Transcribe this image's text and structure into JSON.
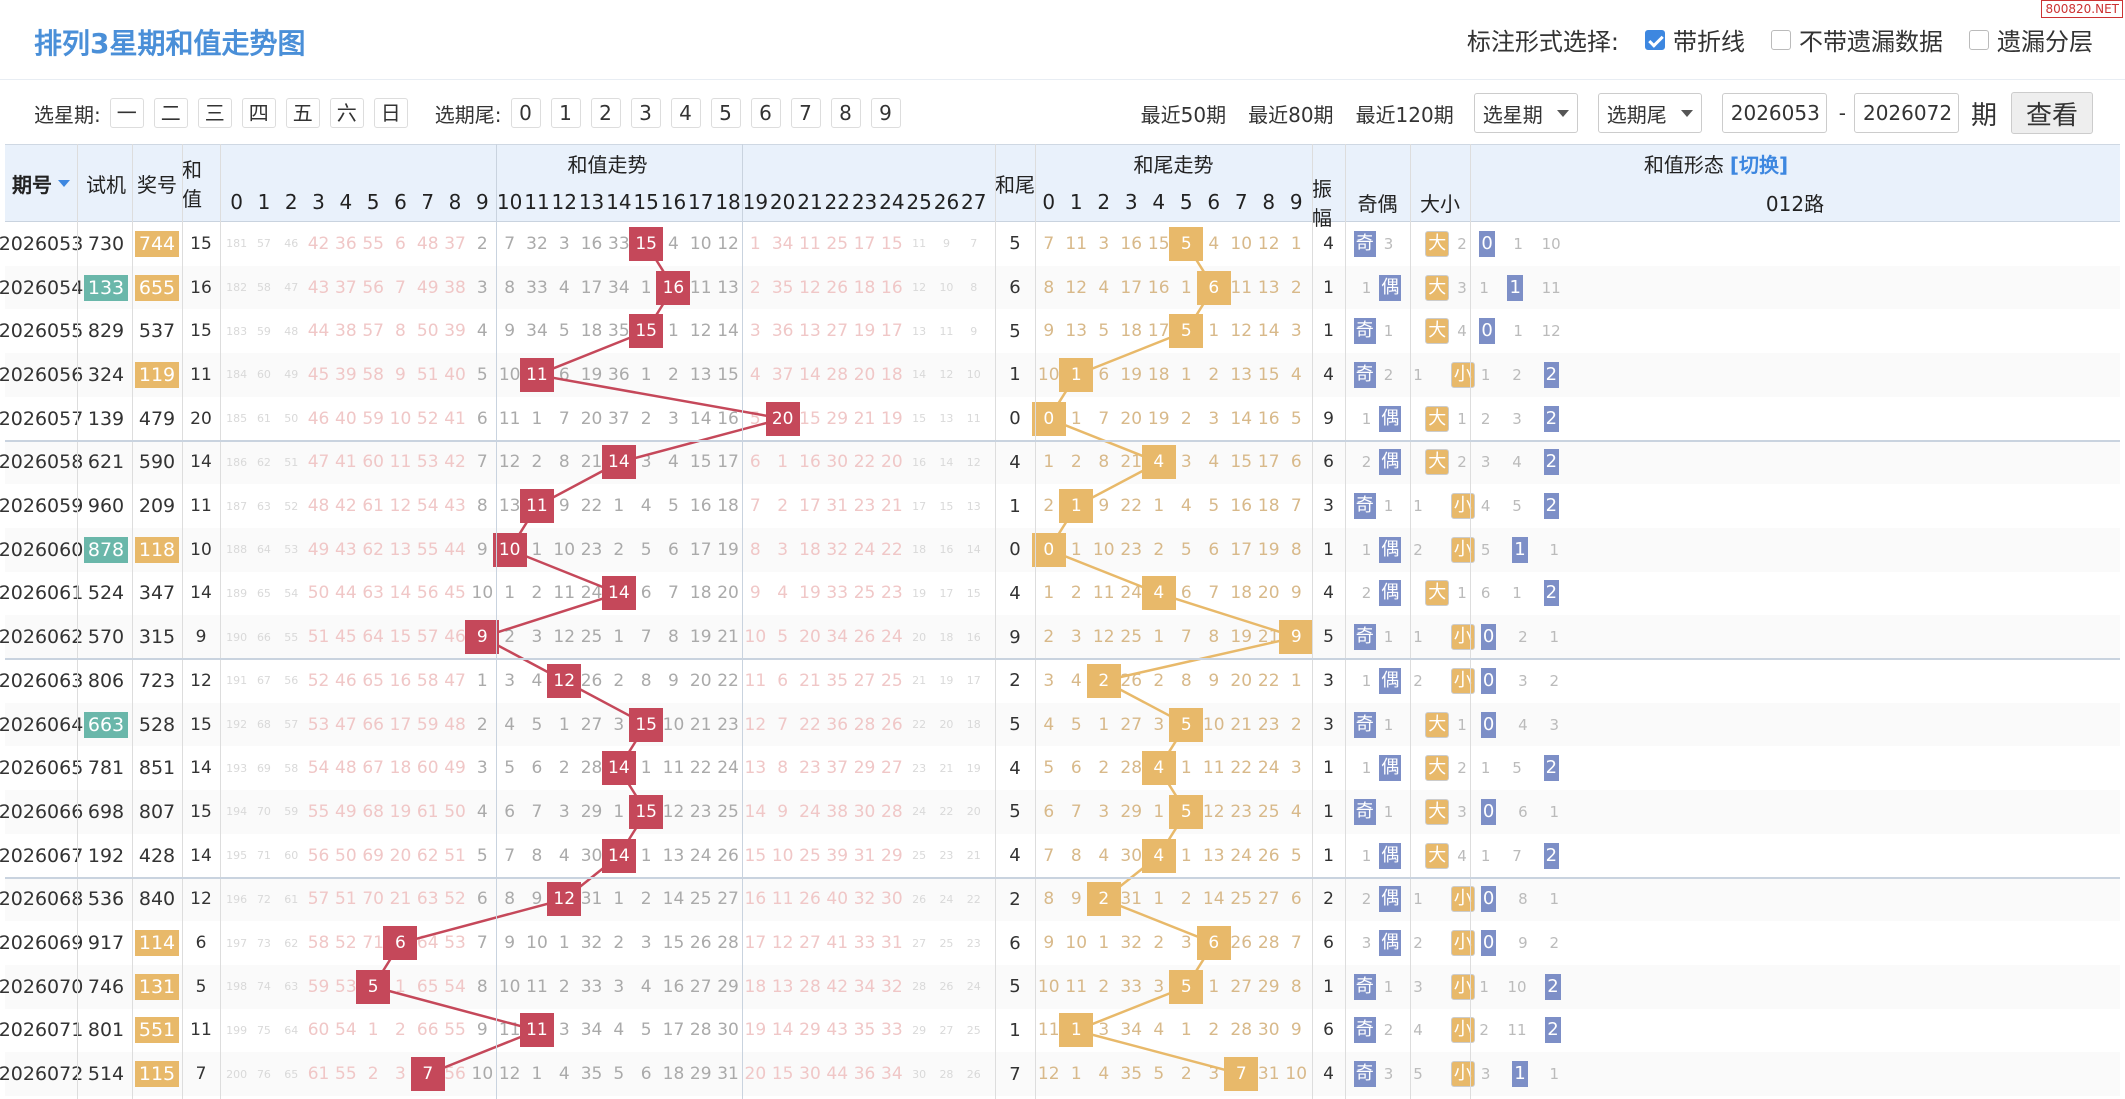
{
  "title": "排列3星期和值走势图",
  "watermark": "800820.NET",
  "mark_options": {
    "label": "标注形式选择:",
    "items": [
      {
        "label": "带折线",
        "checked": true
      },
      {
        "label": "不带遗漏数据",
        "checked": false
      },
      {
        "label": "遗漏分层",
        "checked": false
      }
    ]
  },
  "filter": {
    "weekday_label": "选星期:",
    "weekdays": [
      "一",
      "二",
      "三",
      "四",
      "五",
      "六",
      "日"
    ],
    "tail_label": "选期尾:",
    "tails": [
      "0",
      "1",
      "2",
      "3",
      "4",
      "5",
      "6",
      "7",
      "8",
      "9"
    ],
    "recent": [
      "最近50期",
      "最近80期",
      "最近120期"
    ],
    "select_weekday": "选星期",
    "select_tail": "选期尾",
    "from": "2026053",
    "dash": "-",
    "to": "2026072",
    "period_unit": "期",
    "query": "查看"
  },
  "headers": {
    "issue": "期号",
    "trial": "试机",
    "prize": "奖号",
    "sum": "和值",
    "sum_trend": "和值走势",
    "tail": "和尾",
    "tail_trend": "和尾走势",
    "form": "和值形态",
    "switch": "[切换]",
    "amp": "振幅",
    "oddeven": "奇偶",
    "bigsmall": "大小",
    "route": "012路"
  },
  "sum_cols": [
    "0",
    "1",
    "2",
    "3",
    "4",
    "5",
    "6",
    "7",
    "8",
    "9",
    "10",
    "11",
    "12",
    "13",
    "14",
    "15",
    "16",
    "17",
    "18",
    "19",
    "20",
    "21",
    "22",
    "23",
    "24",
    "25",
    "26",
    "27"
  ],
  "tail_cols": [
    "0",
    "1",
    "2",
    "3",
    "4",
    "5",
    "6",
    "7",
    "8",
    "9"
  ],
  "rows": [
    {
      "issue": "2026053",
      "trial": "730",
      "trial_hl": false,
      "prize": "744",
      "prize_hl": true,
      "sum": 15,
      "tail": 5,
      "amp": 4,
      "oe": "奇",
      "bs": "大",
      "route": 0,
      "miss": [
        "181",
        "57",
        "46",
        "42",
        "36",
        "55",
        "6",
        "48",
        "37",
        "2",
        "7",
        "32",
        "3",
        "16",
        "33",
        "15",
        "4",
        "10",
        "12",
        "1",
        "34",
        "11",
        "25",
        "17",
        "15",
        "11",
        "9",
        "7"
      ],
      "tmiss": [
        "7",
        "11",
        "3",
        "16",
        "15",
        "5",
        "4",
        "10",
        "12",
        "1"
      ],
      "oem": "3",
      "bsm": "2",
      "rm": [
        "1",
        "10"
      ]
    },
    {
      "issue": "2026054",
      "trial": "133",
      "trial_hl": true,
      "prize": "655",
      "prize_hl": true,
      "sum": 16,
      "tail": 6,
      "amp": 1,
      "oe": "偶",
      "bs": "大",
      "route": 1,
      "miss": [
        "182",
        "58",
        "47",
        "43",
        "37",
        "56",
        "7",
        "49",
        "38",
        "3",
        "8",
        "33",
        "4",
        "17",
        "34",
        "1",
        "16",
        "11",
        "13",
        "2",
        "35",
        "12",
        "26",
        "18",
        "16",
        "12",
        "10",
        "8"
      ],
      "tmiss": [
        "8",
        "12",
        "4",
        "17",
        "16",
        "1",
        "6",
        "11",
        "13",
        "2"
      ],
      "oem": "1",
      "bsm": "3",
      "rm": [
        "1",
        "11"
      ]
    },
    {
      "issue": "2026055",
      "trial": "829",
      "trial_hl": false,
      "prize": "537",
      "prize_hl": false,
      "sum": 15,
      "tail": 5,
      "amp": 1,
      "oe": "奇",
      "bs": "大",
      "route": 0,
      "miss": [
        "183",
        "59",
        "48",
        "44",
        "38",
        "57",
        "8",
        "50",
        "39",
        "4",
        "9",
        "34",
        "5",
        "18",
        "35",
        "15",
        "1",
        "12",
        "14",
        "3",
        "36",
        "13",
        "27",
        "19",
        "17",
        "13",
        "11",
        "9"
      ],
      "tmiss": [
        "9",
        "13",
        "5",
        "18",
        "17",
        "5",
        "1",
        "12",
        "14",
        "3"
      ],
      "oem": "1",
      "bsm": "4",
      "rm": [
        "1",
        "12"
      ]
    },
    {
      "issue": "2026056",
      "trial": "324",
      "trial_hl": false,
      "prize": "119",
      "prize_hl": true,
      "sum": 11,
      "tail": 1,
      "amp": 4,
      "oe": "奇",
      "bs": "小",
      "route": 2,
      "miss": [
        "184",
        "60",
        "49",
        "45",
        "39",
        "58",
        "9",
        "51",
        "40",
        "5",
        "10",
        "11",
        "6",
        "19",
        "36",
        "1",
        "2",
        "13",
        "15",
        "4",
        "37",
        "14",
        "28",
        "20",
        "18",
        "14",
        "12",
        "10"
      ],
      "tmiss": [
        "10",
        "1",
        "6",
        "19",
        "18",
        "1",
        "2",
        "13",
        "15",
        "4"
      ],
      "oem": "2",
      "bsm": "1",
      "rm": [
        "1",
        "2"
      ]
    },
    {
      "issue": "2026057",
      "trial": "139",
      "trial_hl": false,
      "prize": "479",
      "prize_hl": false,
      "sum": 20,
      "tail": 0,
      "amp": 9,
      "oe": "偶",
      "bs": "大",
      "route": 2,
      "miss": [
        "185",
        "61",
        "50",
        "46",
        "40",
        "59",
        "10",
        "52",
        "41",
        "6",
        "11",
        "1",
        "7",
        "20",
        "37",
        "2",
        "3",
        "14",
        "16",
        "5",
        "20",
        "15",
        "29",
        "21",
        "19",
        "15",
        "13",
        "11"
      ],
      "tmiss": [
        "0",
        "1",
        "7",
        "20",
        "19",
        "2",
        "3",
        "14",
        "16",
        "5"
      ],
      "oem": "1",
      "bsm": "1",
      "rm": [
        "2",
        "3"
      ]
    },
    {
      "issue": "2026058",
      "trial": "621",
      "trial_hl": false,
      "prize": "590",
      "prize_hl": false,
      "sum": 14,
      "tail": 4,
      "amp": 6,
      "oe": "偶",
      "bs": "大",
      "route": 2,
      "miss": [
        "186",
        "62",
        "51",
        "47",
        "41",
        "60",
        "11",
        "53",
        "42",
        "7",
        "12",
        "2",
        "8",
        "21",
        "14",
        "3",
        "4",
        "15",
        "17",
        "6",
        "1",
        "16",
        "30",
        "22",
        "20",
        "16",
        "14",
        "12"
      ],
      "tmiss": [
        "1",
        "2",
        "8",
        "21",
        "4",
        "3",
        "4",
        "15",
        "17",
        "6"
      ],
      "oem": "2",
      "bsm": "2",
      "rm": [
        "3",
        "4"
      ]
    },
    {
      "issue": "2026059",
      "trial": "960",
      "trial_hl": false,
      "prize": "209",
      "prize_hl": false,
      "sum": 11,
      "tail": 1,
      "amp": 3,
      "oe": "奇",
      "bs": "小",
      "route": 2,
      "miss": [
        "187",
        "63",
        "52",
        "48",
        "42",
        "61",
        "12",
        "54",
        "43",
        "8",
        "13",
        "11",
        "9",
        "22",
        "1",
        "4",
        "5",
        "16",
        "18",
        "7",
        "2",
        "17",
        "31",
        "23",
        "21",
        "17",
        "15",
        "13"
      ],
      "tmiss": [
        "2",
        "1",
        "9",
        "22",
        "1",
        "4",
        "5",
        "16",
        "18",
        "7"
      ],
      "oem": "1",
      "bsm": "1",
      "rm": [
        "4",
        "5"
      ]
    },
    {
      "issue": "2026060",
      "trial": "878",
      "trial_hl": true,
      "prize": "118",
      "prize_hl": true,
      "sum": 10,
      "tail": 0,
      "amp": 1,
      "oe": "偶",
      "bs": "小",
      "route": 1,
      "miss": [
        "188",
        "64",
        "53",
        "49",
        "43",
        "62",
        "13",
        "55",
        "44",
        "9",
        "10",
        "1",
        "10",
        "23",
        "2",
        "5",
        "6",
        "17",
        "19",
        "8",
        "3",
        "18",
        "32",
        "24",
        "22",
        "18",
        "16",
        "14"
      ],
      "tmiss": [
        "0",
        "1",
        "10",
        "23",
        "2",
        "5",
        "6",
        "17",
        "19",
        "8"
      ],
      "oem": "1",
      "bsm": "2",
      "rm": [
        "5",
        "1"
      ]
    },
    {
      "issue": "2026061",
      "trial": "524",
      "trial_hl": false,
      "prize": "347",
      "prize_hl": false,
      "sum": 14,
      "tail": 4,
      "amp": 4,
      "oe": "偶",
      "bs": "大",
      "route": 2,
      "miss": [
        "189",
        "65",
        "54",
        "50",
        "44",
        "63",
        "14",
        "56",
        "45",
        "10",
        "1",
        "2",
        "11",
        "24",
        "14",
        "6",
        "7",
        "18",
        "20",
        "9",
        "4",
        "19",
        "33",
        "25",
        "23",
        "19",
        "17",
        "15"
      ],
      "tmiss": [
        "1",
        "2",
        "11",
        "24",
        "4",
        "6",
        "7",
        "18",
        "20",
        "9"
      ],
      "oem": "2",
      "bsm": "1",
      "rm": [
        "6",
        "1"
      ]
    },
    {
      "issue": "2026062",
      "trial": "570",
      "trial_hl": false,
      "prize": "315",
      "prize_hl": false,
      "sum": 9,
      "tail": 9,
      "amp": 5,
      "oe": "奇",
      "bs": "小",
      "route": 0,
      "miss": [
        "190",
        "66",
        "55",
        "51",
        "45",
        "64",
        "15",
        "57",
        "46",
        "9",
        "2",
        "3",
        "12",
        "25",
        "1",
        "7",
        "8",
        "19",
        "21",
        "10",
        "5",
        "20",
        "34",
        "26",
        "24",
        "20",
        "18",
        "16"
      ],
      "tmiss": [
        "2",
        "3",
        "12",
        "25",
        "1",
        "7",
        "8",
        "19",
        "21",
        "9"
      ],
      "oem": "1",
      "bsm": "1",
      "rm": [
        "2",
        "1"
      ]
    },
    {
      "issue": "2026063",
      "trial": "806",
      "trial_hl": false,
      "prize": "723",
      "prize_hl": false,
      "sum": 12,
      "tail": 2,
      "amp": 3,
      "oe": "偶",
      "bs": "小",
      "route": 0,
      "miss": [
        "191",
        "67",
        "56",
        "52",
        "46",
        "65",
        "16",
        "58",
        "47",
        "1",
        "3",
        "4",
        "12",
        "26",
        "2",
        "8",
        "9",
        "20",
        "22",
        "11",
        "6",
        "21",
        "35",
        "27",
        "25",
        "21",
        "19",
        "17"
      ],
      "tmiss": [
        "3",
        "4",
        "2",
        "26",
        "2",
        "8",
        "9",
        "20",
        "22",
        "1"
      ],
      "oem": "1",
      "bsm": "2",
      "rm": [
        "3",
        "2"
      ]
    },
    {
      "issue": "2026064",
      "trial": "663",
      "trial_hl": true,
      "prize": "528",
      "prize_hl": false,
      "sum": 15,
      "tail": 5,
      "amp": 3,
      "oe": "奇",
      "bs": "大",
      "route": 0,
      "miss": [
        "192",
        "68",
        "57",
        "53",
        "47",
        "66",
        "17",
        "59",
        "48",
        "2",
        "4",
        "5",
        "1",
        "27",
        "3",
        "15",
        "10",
        "21",
        "23",
        "12",
        "7",
        "22",
        "36",
        "28",
        "26",
        "22",
        "20",
        "18"
      ],
      "tmiss": [
        "4",
        "5",
        "1",
        "27",
        "3",
        "5",
        "10",
        "21",
        "23",
        "2"
      ],
      "oem": "1",
      "bsm": "1",
      "rm": [
        "4",
        "3"
      ]
    },
    {
      "issue": "2026065",
      "trial": "781",
      "trial_hl": false,
      "prize": "851",
      "prize_hl": false,
      "sum": 14,
      "tail": 4,
      "amp": 1,
      "oe": "偶",
      "bs": "大",
      "route": 2,
      "miss": [
        "193",
        "69",
        "58",
        "54",
        "48",
        "67",
        "18",
        "60",
        "49",
        "3",
        "5",
        "6",
        "2",
        "28",
        "14",
        "1",
        "11",
        "22",
        "24",
        "13",
        "8",
        "23",
        "37",
        "29",
        "27",
        "23",
        "21",
        "19"
      ],
      "tmiss": [
        "5",
        "6",
        "2",
        "28",
        "4",
        "1",
        "11",
        "22",
        "24",
        "3"
      ],
      "oem": "1",
      "bsm": "2",
      "rm": [
        "1",
        "5"
      ]
    },
    {
      "issue": "2026066",
      "trial": "698",
      "trial_hl": false,
      "prize": "807",
      "prize_hl": false,
      "sum": 15,
      "tail": 5,
      "amp": 1,
      "oe": "奇",
      "bs": "大",
      "route": 0,
      "miss": [
        "194",
        "70",
        "59",
        "55",
        "49",
        "68",
        "19",
        "61",
        "50",
        "4",
        "6",
        "7",
        "3",
        "29",
        "1",
        "15",
        "12",
        "23",
        "25",
        "14",
        "9",
        "24",
        "38",
        "30",
        "28",
        "24",
        "22",
        "20"
      ],
      "tmiss": [
        "6",
        "7",
        "3",
        "29",
        "1",
        "5",
        "12",
        "23",
        "25",
        "4"
      ],
      "oem": "1",
      "bsm": "3",
      "rm": [
        "6",
        "1"
      ]
    },
    {
      "issue": "2026067",
      "trial": "192",
      "trial_hl": false,
      "prize": "428",
      "prize_hl": false,
      "sum": 14,
      "tail": 4,
      "amp": 1,
      "oe": "偶",
      "bs": "大",
      "route": 2,
      "miss": [
        "195",
        "71",
        "60",
        "56",
        "50",
        "69",
        "20",
        "62",
        "51",
        "5",
        "7",
        "8",
        "4",
        "30",
        "14",
        "1",
        "13",
        "24",
        "26",
        "15",
        "10",
        "25",
        "39",
        "31",
        "29",
        "25",
        "23",
        "21"
      ],
      "tmiss": [
        "7",
        "8",
        "4",
        "30",
        "4",
        "1",
        "13",
        "24",
        "26",
        "5"
      ],
      "oem": "1",
      "bsm": "4",
      "rm": [
        "1",
        "7"
      ]
    },
    {
      "issue": "2026068",
      "trial": "536",
      "trial_hl": false,
      "prize": "840",
      "prize_hl": false,
      "sum": 12,
      "tail": 2,
      "amp": 2,
      "oe": "偶",
      "bs": "小",
      "route": 0,
      "miss": [
        "196",
        "72",
        "61",
        "57",
        "51",
        "70",
        "21",
        "63",
        "52",
        "6",
        "8",
        "9",
        "12",
        "31",
        "1",
        "2",
        "14",
        "25",
        "27",
        "16",
        "11",
        "26",
        "40",
        "32",
        "30",
        "26",
        "24",
        "22"
      ],
      "tmiss": [
        "8",
        "9",
        "2",
        "31",
        "1",
        "2",
        "14",
        "25",
        "27",
        "6"
      ],
      "oem": "2",
      "bsm": "1",
      "rm": [
        "8",
        "1"
      ]
    },
    {
      "issue": "2026069",
      "trial": "917",
      "trial_hl": false,
      "prize": "114",
      "prize_hl": true,
      "sum": 6,
      "tail": 6,
      "amp": 6,
      "oe": "偶",
      "bs": "小",
      "route": 0,
      "miss": [
        "197",
        "73",
        "62",
        "58",
        "52",
        "71",
        "6",
        "64",
        "53",
        "7",
        "9",
        "10",
        "1",
        "32",
        "2",
        "3",
        "15",
        "26",
        "28",
        "17",
        "12",
        "27",
        "41",
        "33",
        "31",
        "27",
        "25",
        "23"
      ],
      "tmiss": [
        "9",
        "10",
        "1",
        "32",
        "2",
        "3",
        "6",
        "26",
        "28",
        "7"
      ],
      "oem": "3",
      "bsm": "2",
      "rm": [
        "9",
        "2"
      ]
    },
    {
      "issue": "2026070",
      "trial": "746",
      "trial_hl": false,
      "prize": "131",
      "prize_hl": true,
      "sum": 5,
      "tail": 5,
      "amp": 1,
      "oe": "奇",
      "bs": "小",
      "route": 2,
      "miss": [
        "198",
        "74",
        "63",
        "59",
        "53",
        "5",
        "1",
        "65",
        "54",
        "8",
        "10",
        "11",
        "2",
        "33",
        "3",
        "4",
        "16",
        "27",
        "29",
        "18",
        "13",
        "28",
        "42",
        "34",
        "32",
        "28",
        "26",
        "24"
      ],
      "tmiss": [
        "10",
        "11",
        "2",
        "33",
        "3",
        "5",
        "1",
        "27",
        "29",
        "8"
      ],
      "oem": "1",
      "bsm": "3",
      "rm": [
        "1",
        "10"
      ]
    },
    {
      "issue": "2026071",
      "trial": "801",
      "trial_hl": false,
      "prize": "551",
      "prize_hl": true,
      "sum": 11,
      "tail": 1,
      "amp": 6,
      "oe": "奇",
      "bs": "小",
      "route": 2,
      "miss": [
        "199",
        "75",
        "64",
        "60",
        "54",
        "1",
        "2",
        "66",
        "55",
        "9",
        "11",
        "11",
        "3",
        "34",
        "4",
        "5",
        "17",
        "28",
        "30",
        "19",
        "14",
        "29",
        "43",
        "35",
        "33",
        "29",
        "27",
        "25"
      ],
      "tmiss": [
        "11",
        "1",
        "3",
        "34",
        "4",
        "1",
        "2",
        "28",
        "30",
        "9"
      ],
      "oem": "2",
      "bsm": "4",
      "rm": [
        "2",
        "11"
      ]
    },
    {
      "issue": "2026072",
      "trial": "514",
      "trial_hl": false,
      "prize": "115",
      "prize_hl": true,
      "sum": 7,
      "tail": 7,
      "amp": 4,
      "oe": "奇",
      "bs": "小",
      "route": 1,
      "miss": [
        "200",
        "76",
        "65",
        "61",
        "55",
        "2",
        "3",
        "7",
        "56",
        "10",
        "12",
        "1",
        "4",
        "35",
        "5",
        "6",
        "18",
        "29",
        "31",
        "20",
        "15",
        "30",
        "44",
        "36",
        "34",
        "30",
        "28",
        "26"
      ],
      "tmiss": [
        "12",
        "1",
        "4",
        "35",
        "5",
        "2",
        "3",
        "7",
        "31",
        "10"
      ],
      "oem": "3",
      "bsm": "5",
      "rm": [
        "3",
        "1"
      ]
    }
  ],
  "colors": {
    "accent": "#4a8fd8",
    "sum_hit": "#c5485a",
    "tail_hit": "#e8b96a",
    "neutral_label": "#7d8fc7",
    "trial_hl": "#6ab7aa"
  }
}
